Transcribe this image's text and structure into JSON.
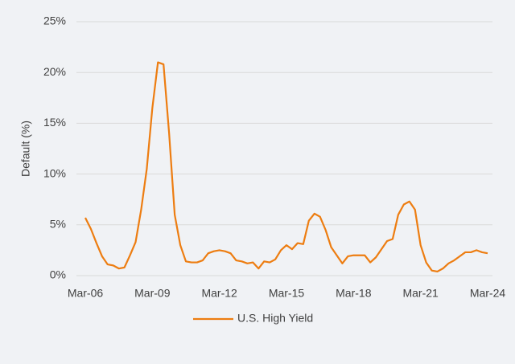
{
  "chart_data": {
    "type": "line",
    "ylabel": "Default (%)",
    "x": [
      "Mar-06",
      null,
      null,
      null,
      null,
      null,
      null,
      null,
      null,
      null,
      null,
      null,
      "Mar-09",
      null,
      null,
      null,
      null,
      null,
      null,
      null,
      null,
      null,
      null,
      null,
      "Mar-12",
      null,
      null,
      null,
      null,
      null,
      null,
      null,
      null,
      null,
      null,
      null,
      "Mar-15",
      null,
      null,
      null,
      null,
      null,
      null,
      null,
      null,
      null,
      null,
      null,
      "Mar-18",
      null,
      null,
      null,
      null,
      null,
      null,
      null,
      null,
      null,
      null,
      null,
      "Mar-21",
      null,
      null,
      null,
      null,
      null,
      null,
      null,
      null,
      null,
      null,
      null,
      "Mar-24"
    ],
    "series": [
      {
        "name": "U.S. High Yield",
        "color": "#ed7d11",
        "values": [
          5.7,
          4.6,
          3.2,
          1.9,
          1.1,
          1.0,
          0.7,
          0.8,
          2.0,
          3.3,
          6.5,
          10.5,
          16.5,
          21.0,
          20.8,
          14.0,
          6.0,
          3.0,
          1.4,
          1.3,
          1.3,
          1.5,
          2.2,
          2.4,
          2.5,
          2.4,
          2.2,
          1.5,
          1.4,
          1.2,
          1.3,
          0.7,
          1.4,
          1.3,
          1.6,
          2.5,
          3.0,
          2.6,
          3.2,
          3.1,
          5.4,
          6.1,
          5.8,
          4.5,
          2.8,
          2.0,
          1.2,
          1.9,
          2.0,
          2.0,
          2.0,
          1.3,
          1.8,
          2.6,
          3.4,
          3.6,
          6.0,
          7.0,
          7.3,
          6.5,
          3.0,
          1.3,
          0.5,
          0.4,
          0.7,
          1.2,
          1.5,
          1.9,
          2.3,
          2.3,
          2.5,
          2.3,
          2.2
        ]
      }
    ],
    "ylim": [
      0,
      25
    ],
    "yticks": [
      {
        "value": 0,
        "label": "0%"
      },
      {
        "value": 5,
        "label": "5%"
      },
      {
        "value": 10,
        "label": "10%"
      },
      {
        "value": 15,
        "label": "15%"
      },
      {
        "value": 20,
        "label": "20%"
      },
      {
        "value": 25,
        "label": "25%"
      }
    ],
    "grid": true,
    "legend": "bottom"
  }
}
